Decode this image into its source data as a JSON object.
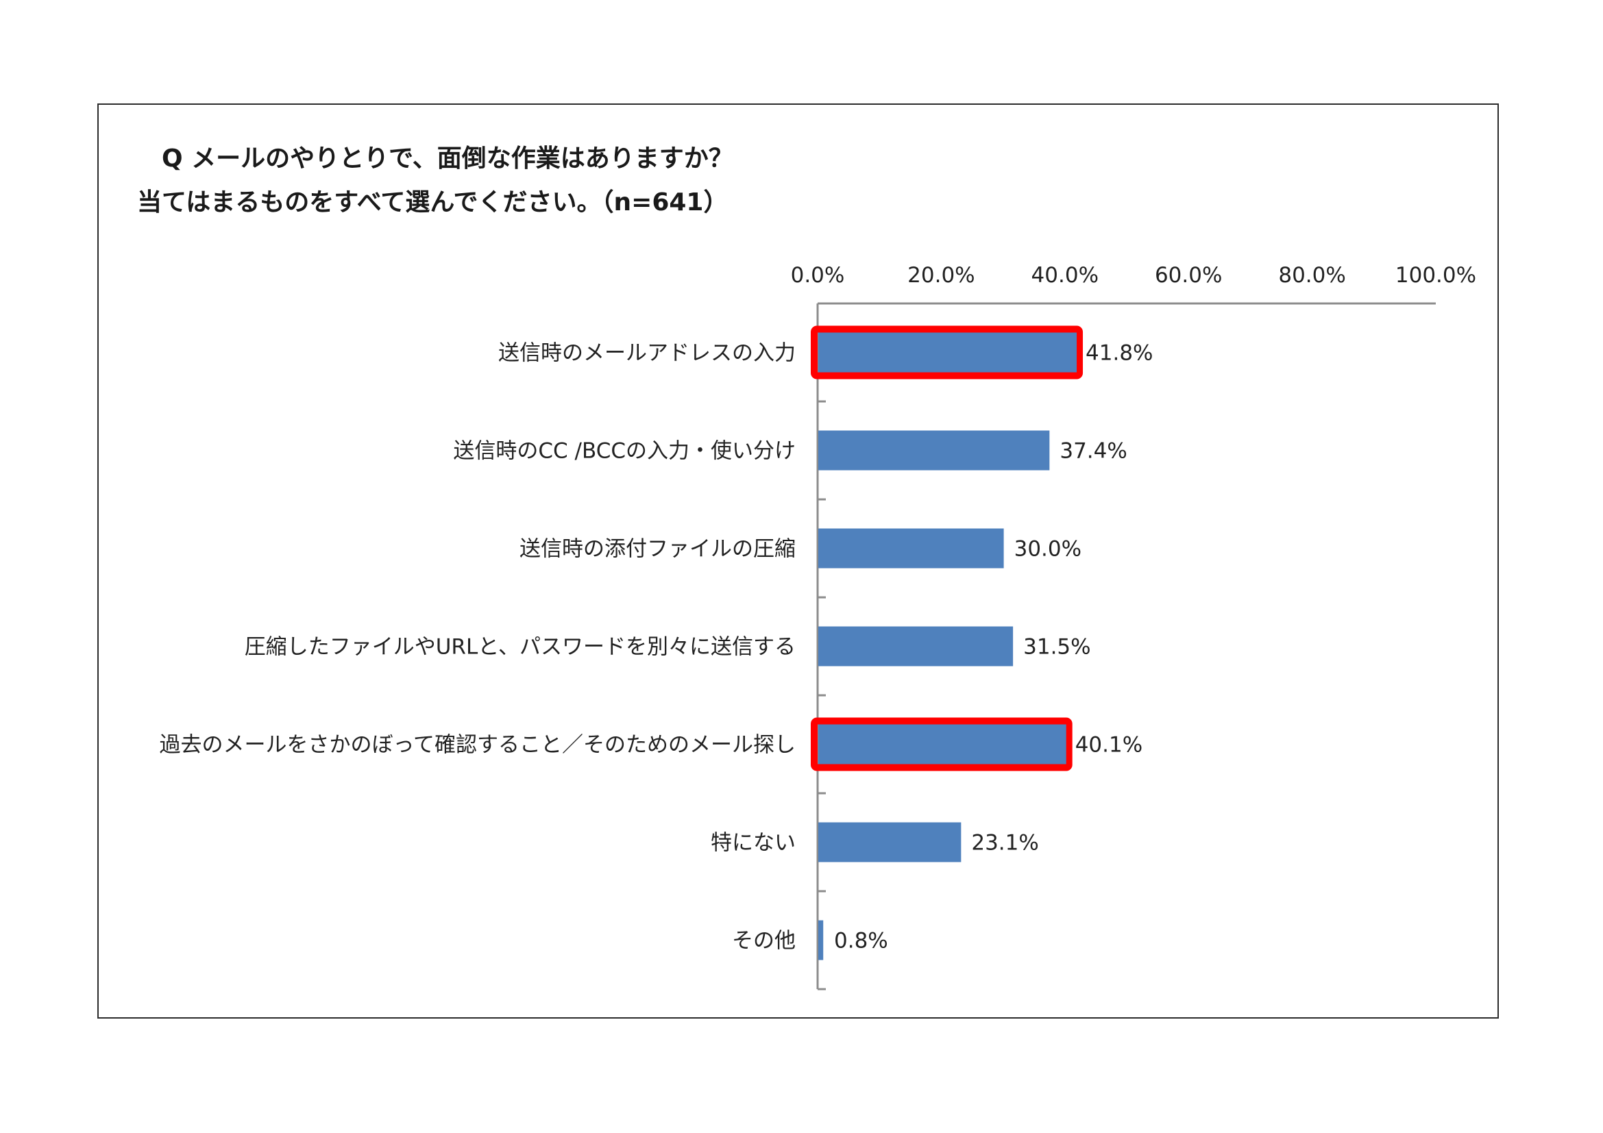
{
  "chart_data": {
    "type": "bar",
    "orientation": "horizontal",
    "title": [
      "Q メールのやりとりで、面倒な作業はありますか？",
      "当てはまるものをすべて選んでください。（n=641）"
    ],
    "xlim": [
      0,
      100
    ],
    "ticks": [
      0,
      20,
      40,
      60,
      80,
      100
    ],
    "tick_labels": [
      "0.0%",
      "20.0%",
      "40.0%",
      "60.0%",
      "80.0%",
      "100.0%"
    ],
    "axis_position": "top",
    "grid": false,
    "categories": [
      "送信時のメールアドレスの入力",
      "送信時のCC /BCCの入力・使い分け",
      "送信時の添付ファイルの圧縮",
      "圧縮したファイルやURLと、パスワードを別々に送信する",
      "過去のメールをさかのぼって確認すること／そのためのメール探し",
      "特にない",
      "その他"
    ],
    "values": [
      41.8,
      37.4,
      30.0,
      31.5,
      40.1,
      23.1,
      0.8
    ],
    "value_labels": [
      "41.8%",
      "37.4%",
      "30.0%",
      "31.5%",
      "40.1%",
      "23.1%",
      "0.8%"
    ],
    "highlighted": [
      true,
      false,
      false,
      false,
      true,
      false,
      false
    ],
    "bar_color": "#4f81bd",
    "highlight_color": "#ff0000"
  }
}
